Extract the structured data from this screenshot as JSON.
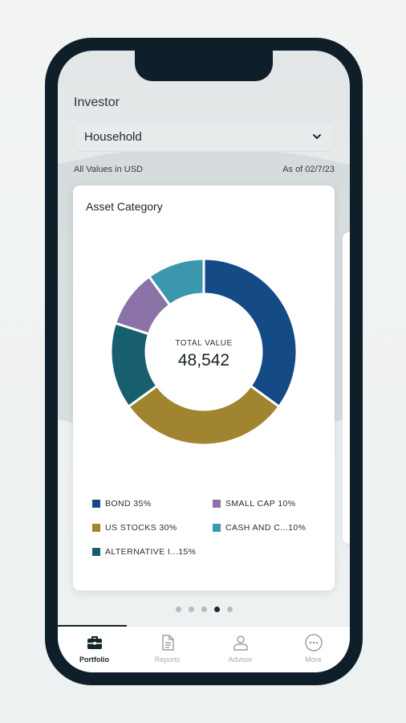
{
  "header": {
    "title": "Investor"
  },
  "select": {
    "value": "Household",
    "icon": "chevron-down-icon"
  },
  "meta": {
    "currency_note": "All Values in USD",
    "as_of": "As of 02/7/23"
  },
  "card": {
    "title": "Asset Category",
    "center_label": "TOTAL VALUE",
    "center_value": "48,542"
  },
  "chart_data": {
    "type": "pie",
    "style": "donut",
    "title": "Asset Category",
    "categories": [
      "BOND",
      "US STOCKS",
      "ALTERNATIVE I...",
      "SMALL CAP",
      "CASH AND C..."
    ],
    "values": [
      35,
      30,
      15,
      10,
      10
    ],
    "legend": [
      {
        "text": "BOND 35%",
        "color": "#144a86"
      },
      {
        "text": "SMALL CAP 10%",
        "color": "#8b73a8"
      },
      {
        "text": "US STOCKS 30%",
        "color": "#a08430"
      },
      {
        "text": "CASH AND C...10%",
        "color": "#3a97ad"
      },
      {
        "text": "ALTERNATIVE I...15%",
        "color": "#175f6e"
      }
    ],
    "colors": [
      "#144a86",
      "#a08430",
      "#175f6e",
      "#8b73a8",
      "#3a97ad"
    ]
  },
  "pagination": {
    "count": 5,
    "active_index": 3
  },
  "tabbar": {
    "tabs": [
      {
        "label": "Portfolio",
        "icon": "briefcase-icon",
        "active": true
      },
      {
        "label": "Reports",
        "icon": "document-icon",
        "active": false
      },
      {
        "label": "Advisor",
        "icon": "person-icon",
        "active": false
      },
      {
        "label": "More",
        "icon": "more-icon",
        "active": false
      }
    ]
  },
  "colors": {
    "phone_frame": "#0f1f2a",
    "bond": "#144a86",
    "us_stocks": "#a08430",
    "alternative": "#175f6e",
    "small_cap": "#8b73a8",
    "cash": "#3a97ad"
  }
}
